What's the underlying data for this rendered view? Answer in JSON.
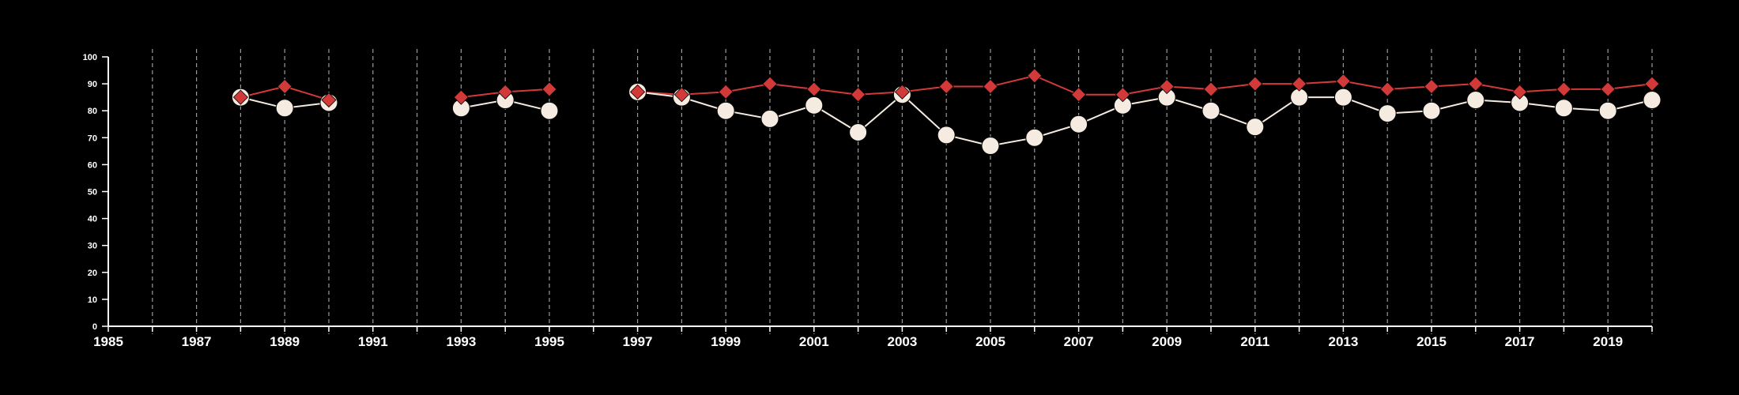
{
  "chart_data": {
    "type": "line",
    "title": "",
    "xlabel": "",
    "ylabel": "",
    "xlim": [
      1985,
      2020
    ],
    "ylim": [
      0,
      100
    ],
    "x_ticks": [
      1985,
      1987,
      1989,
      1991,
      1993,
      1995,
      1997,
      1999,
      2001,
      2003,
      2005,
      2007,
      2009,
      2011,
      2013,
      2015,
      2017,
      2019
    ],
    "y_ticks": [
      0,
      10,
      20,
      30,
      40,
      50,
      60,
      70,
      80,
      90,
      100
    ],
    "grid": "vertical dashed lines at each year",
    "legend": "none",
    "background_color": "#000000",
    "axis_color": "#ffffff",
    "grid_color": "#9a9a9a",
    "series": [
      {
        "marker": "diamond",
        "color": "#d23a3a",
        "points": [
          {
            "x": 1988,
            "y": 85
          },
          {
            "x": 1989,
            "y": 89
          },
          {
            "x": 1990,
            "y": 84
          },
          {
            "x": 1993,
            "y": 85
          },
          {
            "x": 1994,
            "y": 87
          },
          {
            "x": 1995,
            "y": 88
          },
          {
            "x": 1997,
            "y": 87
          },
          {
            "x": 1998,
            "y": 86
          },
          {
            "x": 1999,
            "y": 87
          },
          {
            "x": 2000,
            "y": 90
          },
          {
            "x": 2001,
            "y": 88
          },
          {
            "x": 2002,
            "y": 86
          },
          {
            "x": 2003,
            "y": 87
          },
          {
            "x": 2004,
            "y": 89
          },
          {
            "x": 2005,
            "y": 89
          },
          {
            "x": 2006,
            "y": 93
          },
          {
            "x": 2007,
            "y": 86
          },
          {
            "x": 2008,
            "y": 86
          },
          {
            "x": 2009,
            "y": 89
          },
          {
            "x": 2010,
            "y": 88
          },
          {
            "x": 2011,
            "y": 90
          },
          {
            "x": 2012,
            "y": 90
          },
          {
            "x": 2013,
            "y": 91
          },
          {
            "x": 2014,
            "y": 88
          },
          {
            "x": 2015,
            "y": 89
          },
          {
            "x": 2016,
            "y": 90
          },
          {
            "x": 2017,
            "y": 87
          },
          {
            "x": 2018,
            "y": 88
          },
          {
            "x": 2019,
            "y": 88
          },
          {
            "x": 2020,
            "y": 90
          }
        ]
      },
      {
        "marker": "circle",
        "color": "#f5ebe0",
        "points": [
          {
            "x": 1988,
            "y": 85
          },
          {
            "x": 1989,
            "y": 81
          },
          {
            "x": 1990,
            "y": 83
          },
          {
            "x": 1993,
            "y": 81
          },
          {
            "x": 1994,
            "y": 84
          },
          {
            "x": 1995,
            "y": 80
          },
          {
            "x": 1997,
            "y": 87
          },
          {
            "x": 1998,
            "y": 85
          },
          {
            "x": 1999,
            "y": 80
          },
          {
            "x": 2000,
            "y": 77
          },
          {
            "x": 2001,
            "y": 82
          },
          {
            "x": 2002,
            "y": 72
          },
          {
            "x": 2003,
            "y": 86
          },
          {
            "x": 2004,
            "y": 71
          },
          {
            "x": 2005,
            "y": 67
          },
          {
            "x": 2006,
            "y": 70
          },
          {
            "x": 2007,
            "y": 75
          },
          {
            "x": 2008,
            "y": 82
          },
          {
            "x": 2009,
            "y": 85
          },
          {
            "x": 2010,
            "y": 80
          },
          {
            "x": 2011,
            "y": 74
          },
          {
            "x": 2012,
            "y": 85
          },
          {
            "x": 2013,
            "y": 85
          },
          {
            "x": 2014,
            "y": 79
          },
          {
            "x": 2015,
            "y": 80
          },
          {
            "x": 2016,
            "y": 84
          },
          {
            "x": 2017,
            "y": 83
          },
          {
            "x": 2018,
            "y": 81
          },
          {
            "x": 2019,
            "y": 80
          },
          {
            "x": 2020,
            "y": 84
          }
        ]
      }
    ]
  }
}
